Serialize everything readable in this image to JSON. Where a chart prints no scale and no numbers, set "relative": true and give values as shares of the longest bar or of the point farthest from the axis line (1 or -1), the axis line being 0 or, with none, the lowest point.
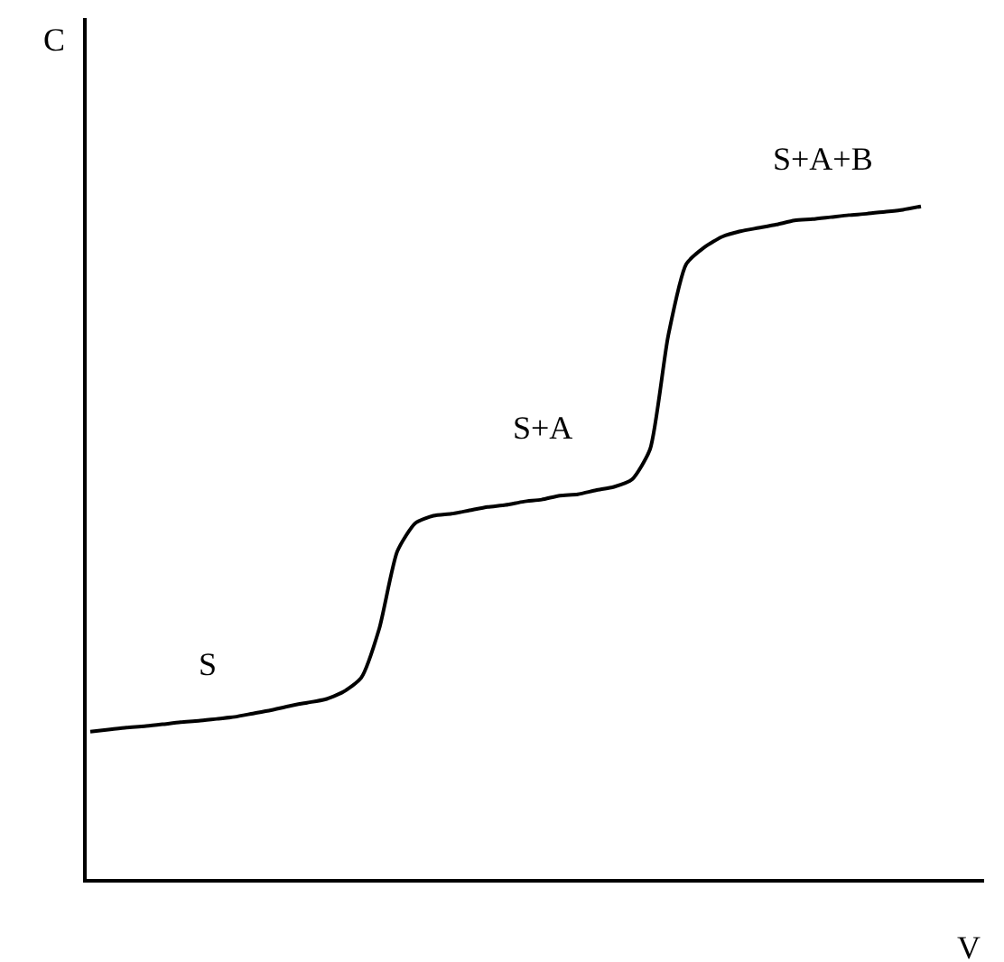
{
  "chart_data": {
    "type": "line",
    "relative": true,
    "xlabel": "V",
    "ylabel": "C",
    "marker": "none",
    "line_style": "solid",
    "categories": [
      null,
      null,
      null,
      null,
      null,
      null,
      null,
      null,
      null,
      null,
      null,
      null,
      null,
      null,
      null,
      null,
      null,
      null,
      null,
      null,
      null,
      null,
      null,
      null,
      null,
      null,
      null,
      null,
      null,
      null,
      null,
      null,
      null,
      null,
      null,
      null,
      null,
      null,
      null,
      null,
      null,
      null,
      null,
      null,
      null,
      null,
      null
    ],
    "series": [
      {
        "color": "#000000",
        "values": [
          0.219,
          0.222,
          0.225,
          0.227,
          0.23,
          0.233,
          0.235,
          0.238,
          0.241,
          0.246,
          0.251,
          0.257,
          0.262,
          0.267,
          0.278,
          0.299,
          0.372,
          0.487,
          0.529,
          0.54,
          0.543,
          0.548,
          0.553,
          0.556,
          0.561,
          0.564,
          0.57,
          0.572,
          0.578,
          0.583,
          0.594,
          0.639,
          0.807,
          0.914,
          0.939,
          0.955,
          0.963,
          0.968,
          0.973,
          0.979,
          0.981,
          0.984,
          0.987,
          0.989,
          0.992,
          0.995,
          1.0
        ]
      }
    ],
    "annotations": [
      "S",
      "S+A",
      "S+A+B"
    ]
  }
}
